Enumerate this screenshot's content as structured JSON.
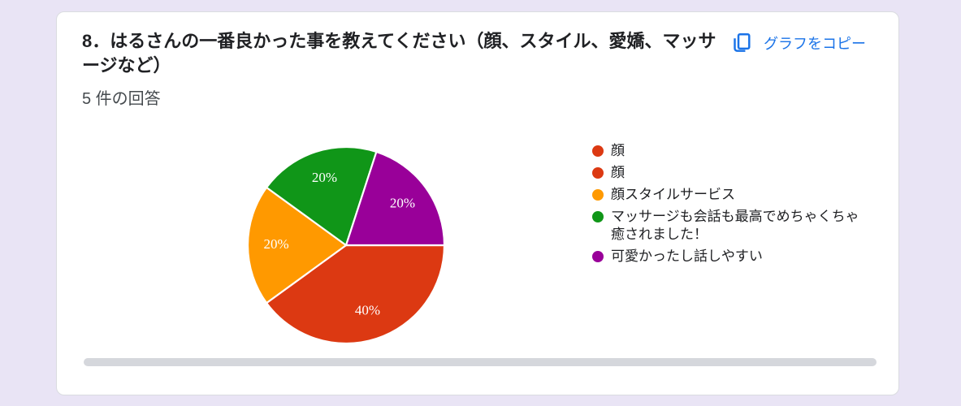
{
  "page": {
    "background_color": "#e9e4f5",
    "card_background": "#ffffff"
  },
  "card": {
    "title": "8．はるさんの一番良かった事を教えてください（顔、スタイル、愛嬌、マッサージなど）",
    "response_count": "5 件の回答",
    "copy_button_label": "グラフをコピー",
    "accent_color": "#1a73e8"
  },
  "chart_data": {
    "type": "pie",
    "title": "8．はるさんの一番良かった事を教えてください（顔、スタイル、愛嬌、マッサージなど）",
    "responses_count": 5,
    "legend_position": "right",
    "start_angle_deg_clockwise_from_3oclock": 0,
    "slice_label_color": "#ffffff",
    "slices": [
      {
        "label": "顔",
        "percent": 20,
        "color": "#dc3912"
      },
      {
        "label": "顔",
        "percent": 20,
        "color": "#dc3912"
      },
      {
        "label": "顔スタイルサービス",
        "percent": 20,
        "color": "#ff9900"
      },
      {
        "label": "マッサージも会話も最高でめちゃくちゃ癒されました！",
        "percent": 20,
        "color": "#109618"
      },
      {
        "label": "可愛かったし話しやすい",
        "percent": 20,
        "color": "#990099"
      }
    ],
    "wedges": [
      {
        "percent": 40,
        "color": "#dc3912",
        "label": "40%"
      },
      {
        "percent": 20,
        "color": "#ff9900",
        "label": "20%"
      },
      {
        "percent": 20,
        "color": "#109618",
        "label": "20%"
      },
      {
        "percent": 20,
        "color": "#990099",
        "label": "20%"
      }
    ]
  }
}
